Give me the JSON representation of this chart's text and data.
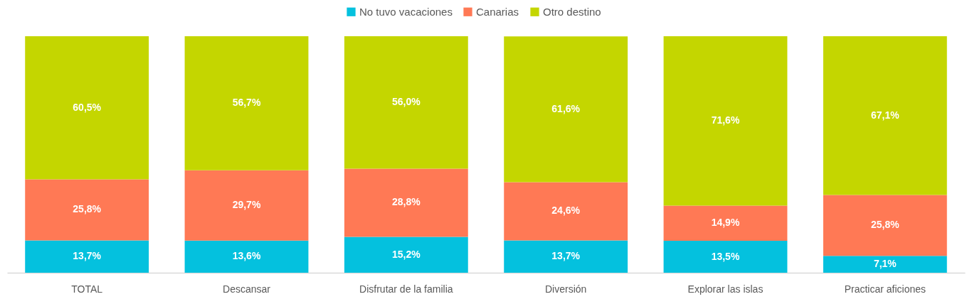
{
  "chart_data": {
    "type": "bar",
    "stacked": true,
    "categories": [
      "TOTAL",
      "Descansar",
      "Disfrutar de la familia",
      "Diversión",
      "Explorar las islas",
      "Practicar aficiones"
    ],
    "series": [
      {
        "name": "No tuvo vacaciones",
        "color": "#04c1de",
        "values": [
          13.7,
          13.6,
          15.2,
          13.7,
          13.5,
          7.1
        ],
        "value_labels": [
          "13,7%",
          "13,6%",
          "15,2%",
          "13,7%",
          "13,5%",
          "7,1%"
        ]
      },
      {
        "name": "Canarias",
        "color": "#ff7955",
        "values": [
          25.8,
          29.7,
          28.8,
          24.6,
          14.9,
          25.8
        ],
        "value_labels": [
          "25,8%",
          "29,7%",
          "28,8%",
          "24,6%",
          "14,9%",
          "25,8%"
        ]
      },
      {
        "name": "Otro destino",
        "color": "#c4d600",
        "values": [
          60.5,
          56.7,
          56.0,
          61.6,
          71.6,
          67.1
        ],
        "value_labels": [
          "60,5%",
          "56,7%",
          "56,0%",
          "61,6%",
          "71,6%",
          "67,1%"
        ]
      }
    ],
    "ylim": [
      0,
      100
    ],
    "legend": "top",
    "tick_labels": "x"
  }
}
